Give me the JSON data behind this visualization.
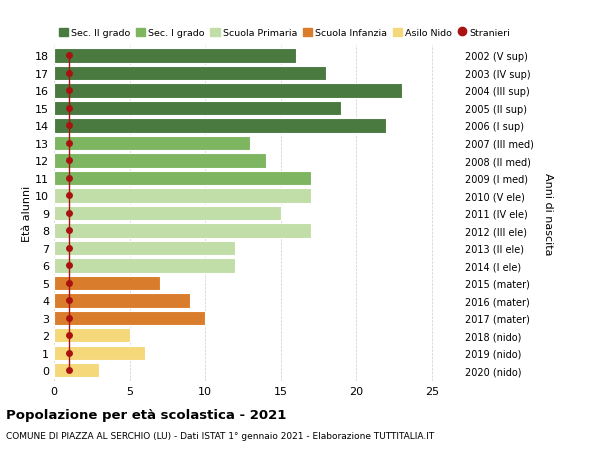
{
  "ages": [
    18,
    17,
    16,
    15,
    14,
    13,
    12,
    11,
    10,
    9,
    8,
    7,
    6,
    5,
    4,
    3,
    2,
    1,
    0
  ],
  "right_labels": [
    "2002 (V sup)",
    "2003 (IV sup)",
    "2004 (III sup)",
    "2005 (II sup)",
    "2006 (I sup)",
    "2007 (III med)",
    "2008 (II med)",
    "2009 (I med)",
    "2010 (V ele)",
    "2011 (IV ele)",
    "2012 (III ele)",
    "2013 (II ele)",
    "2014 (I ele)",
    "2015 (mater)",
    "2016 (mater)",
    "2017 (mater)",
    "2018 (nido)",
    "2019 (nido)",
    "2020 (nido)"
  ],
  "values": [
    16,
    18,
    23,
    19,
    22,
    13,
    14,
    17,
    17,
    15,
    17,
    12,
    12,
    7,
    9,
    10,
    5,
    6,
    3
  ],
  "stranieri_x": [
    1,
    1,
    1,
    1,
    1,
    1,
    1,
    1,
    1,
    1,
    1,
    1,
    1,
    1,
    1,
    1,
    1,
    1,
    1
  ],
  "bar_colors": [
    "#4a7a40",
    "#4a7a40",
    "#4a7a40",
    "#4a7a40",
    "#4a7a40",
    "#7db560",
    "#7db560",
    "#7db560",
    "#c2dea8",
    "#c2dea8",
    "#c2dea8",
    "#c2dea8",
    "#c2dea8",
    "#d97c2b",
    "#d97c2b",
    "#d97c2b",
    "#f5d87a",
    "#f5d87a",
    "#f5d87a"
  ],
  "legend_labels": [
    "Sec. II grado",
    "Sec. I grado",
    "Scuola Primaria",
    "Scuola Infanzia",
    "Asilo Nido",
    "Stranieri"
  ],
  "legend_colors": [
    "#4a7a40",
    "#7db560",
    "#c2dea8",
    "#d97c2b",
    "#f5d87a",
    "#aa1111"
  ],
  "stranieri_color": "#aa1111",
  "title": "Popolazione per età scolastica - 2021",
  "subtitle": "COMUNE DI PIAZZA AL SERCHIO (LU) - Dati ISTAT 1° gennaio 2021 - Elaborazione TUTTITALIA.IT",
  "ylabel_left": "Età alunni",
  "ylabel_right": "Anni di nascita",
  "xlim": [
    0,
    27
  ],
  "xticks": [
    0,
    5,
    10,
    15,
    20,
    25
  ],
  "bar_height": 0.82,
  "background_color": "#ffffff",
  "grid_color": "#cccccc"
}
